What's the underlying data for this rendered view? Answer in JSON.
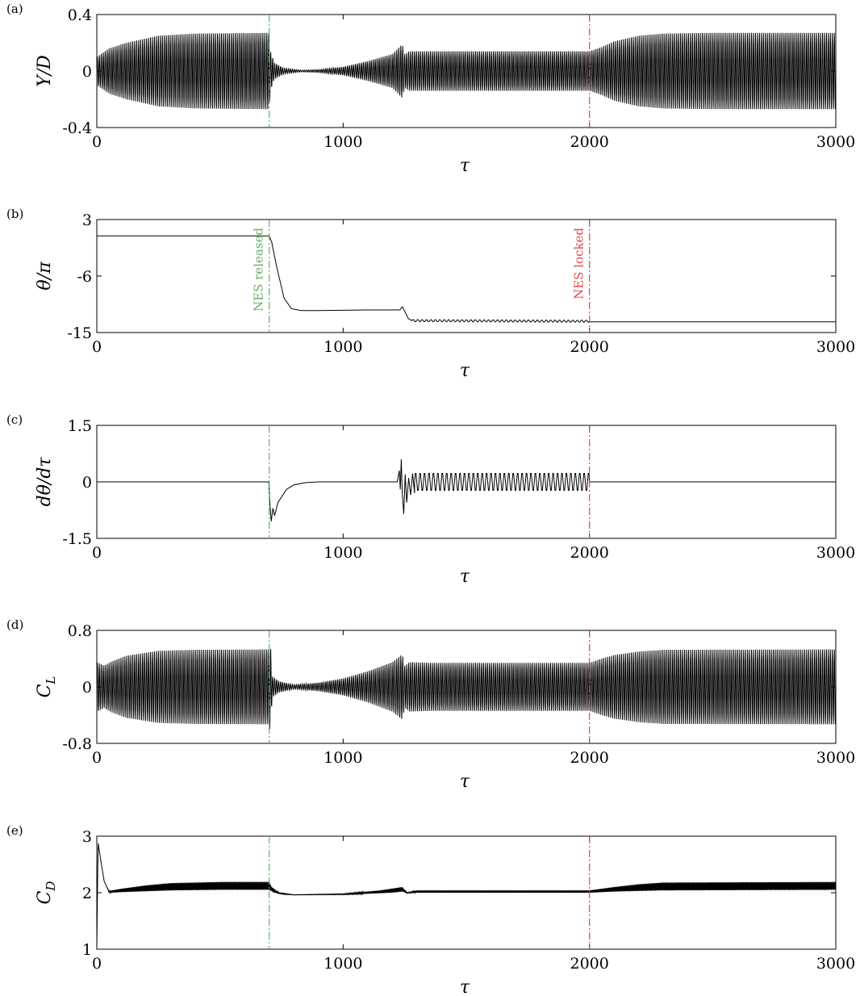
{
  "chart_data": [
    {
      "type": "line",
      "panel_label": "(a)",
      "ylabel": "Y/D",
      "xlabel": "τ",
      "xlim": [
        0,
        3000
      ],
      "ylim": [
        -0.4,
        0.4
      ],
      "xticks": [
        0,
        1000,
        2000,
        3000
      ],
      "yticks": [
        -0.4,
        0,
        0.4
      ],
      "ytick_labels": [
        "-0.4",
        "0",
        "0.4"
      ],
      "signal": {
        "kind": "oscillation",
        "period": 8,
        "envelope": [
          [
            0,
            0.1
          ],
          [
            50,
            0.16
          ],
          [
            120,
            0.2
          ],
          [
            250,
            0.25
          ],
          [
            400,
            0.265
          ],
          [
            700,
            0.27
          ],
          [
            705,
            0.14
          ],
          [
            720,
            0.06
          ],
          [
            760,
            0.02
          ],
          [
            830,
            0.006
          ],
          [
            900,
            0.01
          ],
          [
            1000,
            0.03
          ],
          [
            1100,
            0.07
          ],
          [
            1200,
            0.12
          ],
          [
            1240,
            0.19
          ],
          [
            1250,
            0.12
          ],
          [
            1270,
            0.14
          ],
          [
            1350,
            0.14
          ],
          [
            2000,
            0.14
          ],
          [
            2050,
            0.17
          ],
          [
            2100,
            0.21
          ],
          [
            2200,
            0.25
          ],
          [
            2300,
            0.265
          ],
          [
            2500,
            0.27
          ],
          [
            3000,
            0.27
          ]
        ]
      },
      "vlines": [
        {
          "x": 700,
          "color": "#62b162",
          "style": "dashdot"
        },
        {
          "x": 2000,
          "color": "#e04848",
          "style": "dashdot"
        }
      ]
    },
    {
      "type": "line",
      "panel_label": "(b)",
      "ylabel": "θ/π",
      "xlabel": "τ",
      "xlim": [
        0,
        3000
      ],
      "ylim": [
        -15,
        3
      ],
      "xticks": [
        0,
        1000,
        2000,
        3000
      ],
      "yticks": [
        -15,
        -6,
        3
      ],
      "ytick_labels": [
        "-15",
        "-6",
        "3"
      ],
      "signal": {
        "kind": "piecewise",
        "points": [
          [
            0,
            0.4
          ],
          [
            700,
            0.4
          ],
          [
            710,
            -0.6
          ],
          [
            730,
            -4.5
          ],
          [
            760,
            -9.5
          ],
          [
            790,
            -11.2
          ],
          [
            830,
            -11.5
          ],
          [
            900,
            -11.5
          ],
          [
            1000,
            -11.45
          ],
          [
            1100,
            -11.4
          ],
          [
            1230,
            -11.4
          ],
          [
            1240,
            -10.9
          ],
          [
            1250,
            -11.6
          ],
          [
            1265,
            -12.8
          ],
          [
            1280,
            -13.1
          ],
          [
            2000,
            -13.2
          ],
          [
            2001,
            -13.3
          ],
          [
            3000,
            -13.3
          ]
        ],
        "ripple": {
          "from": 1280,
          "to": 2000,
          "amplitude": 0.18,
          "period": 18
        }
      },
      "vlines": [
        {
          "x": 700,
          "color": "#62b162",
          "style": "dashdot"
        },
        {
          "x": 2000,
          "color": "#e04848",
          "style": "dashdot"
        }
      ],
      "annotations": [
        {
          "text": "NES released",
          "x": 700,
          "color": "#62b162",
          "rotation": -90
        },
        {
          "text": "NES locked",
          "x": 2000,
          "color": "#e04848",
          "rotation": -90
        }
      ]
    },
    {
      "type": "line",
      "panel_label": "(c)",
      "ylabel": "dθ/dτ",
      "xlabel": "τ",
      "xlim": [
        0,
        3000
      ],
      "ylim": [
        -1.5,
        1.5
      ],
      "xticks": [
        0,
        1000,
        2000,
        3000
      ],
      "yticks": [
        -1.5,
        0,
        1.5
      ],
      "ytick_labels": [
        "-1.5",
        "0",
        "1.5"
      ],
      "signal": {
        "kind": "piecewise",
        "points": [
          [
            0,
            0
          ],
          [
            698,
            0
          ],
          [
            703,
            -0.6
          ],
          [
            708,
            -1.05
          ],
          [
            715,
            -0.7
          ],
          [
            722,
            -0.9
          ],
          [
            735,
            -0.55
          ],
          [
            750,
            -0.4
          ],
          [
            770,
            -0.2
          ],
          [
            800,
            -0.08
          ],
          [
            850,
            -0.02
          ],
          [
            900,
            0
          ],
          [
            1220,
            0
          ],
          [
            1228,
            0.3
          ],
          [
            1232,
            -0.2
          ],
          [
            1236,
            0.6
          ],
          [
            1240,
            -0.3
          ],
          [
            1246,
            -0.85
          ],
          [
            1252,
            0.2
          ],
          [
            1258,
            -0.55
          ],
          [
            1266,
            0.1
          ],
          [
            1274,
            -0.35
          ],
          [
            1282,
            0.22
          ],
          [
            1290,
            -0.3
          ]
        ],
        "ripple": {
          "from": 1290,
          "to": 2000,
          "amplitude": 0.26,
          "period": 18
        },
        "tail": [
          [
            2000,
            0
          ],
          [
            3000,
            0
          ]
        ]
      },
      "vlines": [
        {
          "x": 700,
          "color": "#62b162",
          "style": "dashdot"
        },
        {
          "x": 2000,
          "color": "#e04848",
          "style": "dashdot"
        }
      ]
    },
    {
      "type": "line",
      "panel_label": "(d)",
      "ylabel": "C_L",
      "xlabel": "τ",
      "xlim": [
        0,
        3000
      ],
      "ylim": [
        -0.8,
        0.8
      ],
      "xticks": [
        0,
        1000,
        2000,
        3000
      ],
      "yticks": [
        -0.8,
        0,
        0.8
      ],
      "ytick_labels": [
        "-0.8",
        "0",
        "0.8"
      ],
      "signal": {
        "kind": "oscillation",
        "period": 8,
        "envelope": [
          [
            0,
            0.35
          ],
          [
            30,
            0.3
          ],
          [
            60,
            0.36
          ],
          [
            120,
            0.44
          ],
          [
            250,
            0.51
          ],
          [
            400,
            0.525
          ],
          [
            700,
            0.53
          ],
          [
            704,
            0.66
          ],
          [
            712,
            0.15
          ],
          [
            740,
            0.08
          ],
          [
            800,
            0.03
          ],
          [
            900,
            0.06
          ],
          [
            1000,
            0.12
          ],
          [
            1100,
            0.22
          ],
          [
            1200,
            0.35
          ],
          [
            1240,
            0.46
          ],
          [
            1250,
            0.3
          ],
          [
            1270,
            0.35
          ],
          [
            1350,
            0.34
          ],
          [
            2000,
            0.34
          ],
          [
            2050,
            0.4
          ],
          [
            2100,
            0.45
          ],
          [
            2200,
            0.5
          ],
          [
            2300,
            0.525
          ],
          [
            3000,
            0.53
          ]
        ]
      },
      "vlines": [
        {
          "x": 700,
          "color": "#62b162",
          "style": "dashdot"
        },
        {
          "x": 2000,
          "color": "#e04848",
          "style": "dashdot"
        }
      ]
    },
    {
      "type": "line",
      "panel_label": "(e)",
      "ylabel": "C_D",
      "xlabel": "τ",
      "xlim": [
        0,
        3000
      ],
      "ylim": [
        1,
        3
      ],
      "xticks": [
        0,
        1000,
        2000,
        3000
      ],
      "yticks": [
        1,
        2,
        3
      ],
      "ytick_labels": [
        "1",
        "2",
        "3"
      ],
      "signal": {
        "kind": "band",
        "period": 4,
        "lower": [
          [
            0,
            1.0
          ],
          [
            5,
            2.9
          ],
          [
            15,
            2.6
          ],
          [
            30,
            2.2
          ],
          [
            50,
            2.0
          ],
          [
            100,
            2.01
          ],
          [
            300,
            2.04
          ],
          [
            500,
            2.05
          ],
          [
            700,
            2.05
          ],
          [
            720,
            2.0
          ],
          [
            760,
            1.97
          ],
          [
            800,
            1.96
          ],
          [
            1000,
            1.965
          ],
          [
            1200,
            2.0
          ],
          [
            1240,
            2.02
          ],
          [
            1260,
            1.99
          ],
          [
            1280,
            2.0
          ],
          [
            1350,
            2.0
          ],
          [
            2000,
            2.0
          ],
          [
            2100,
            2.02
          ],
          [
            2300,
            2.04
          ],
          [
            3000,
            2.05
          ]
        ],
        "upper": [
          [
            0,
            1.0
          ],
          [
            5,
            2.9
          ],
          [
            15,
            2.6
          ],
          [
            30,
            2.2
          ],
          [
            50,
            2.03
          ],
          [
            100,
            2.07
          ],
          [
            200,
            2.13
          ],
          [
            300,
            2.17
          ],
          [
            500,
            2.19
          ],
          [
            700,
            2.19
          ],
          [
            710,
            2.1
          ],
          [
            740,
            2.0
          ],
          [
            800,
            1.965
          ],
          [
            1000,
            1.98
          ],
          [
            1150,
            2.04
          ],
          [
            1240,
            2.1
          ],
          [
            1260,
            2.0
          ],
          [
            1300,
            2.04
          ],
          [
            1400,
            2.04
          ],
          [
            2000,
            2.04
          ],
          [
            2100,
            2.1
          ],
          [
            2200,
            2.15
          ],
          [
            2300,
            2.18
          ],
          [
            3000,
            2.19
          ]
        ]
      },
      "vlines": [
        {
          "x": 700,
          "color": "#62b162",
          "style": "dashdot"
        },
        {
          "x": 2000,
          "color": "#e04848",
          "style": "dashdot"
        }
      ]
    }
  ]
}
